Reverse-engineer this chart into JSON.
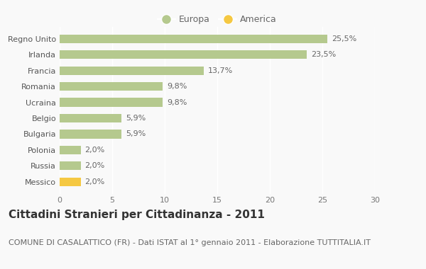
{
  "categories": [
    "Messico",
    "Russia",
    "Polonia",
    "Bulgaria",
    "Belgio",
    "Ucraina",
    "Romania",
    "Francia",
    "Irlanda",
    "Regno Unito"
  ],
  "values": [
    2.0,
    2.0,
    2.0,
    5.9,
    5.9,
    9.8,
    9.8,
    13.7,
    23.5,
    25.5
  ],
  "labels": [
    "2,0%",
    "2,0%",
    "2,0%",
    "5,9%",
    "5,9%",
    "9,8%",
    "9,8%",
    "13,7%",
    "23,5%",
    "25,5%"
  ],
  "colors": [
    "#f5c842",
    "#b5c98e",
    "#b5c98e",
    "#b5c98e",
    "#b5c98e",
    "#b5c98e",
    "#b5c98e",
    "#b5c98e",
    "#b5c98e",
    "#b5c98e"
  ],
  "europa_color": "#b5c98e",
  "america_color": "#f5c842",
  "title": "Cittadini Stranieri per Cittadinanza - 2011",
  "subtitle": "COMUNE DI CASALATTICO (FR) - Dati ISTAT al 1° gennaio 2011 - Elaborazione TUTTITALIA.IT",
  "xlim": [
    0,
    30
  ],
  "xticks": [
    0,
    5,
    10,
    15,
    20,
    25,
    30
  ],
  "bg_color": "#f9f9f9",
  "legend_europa": "Europa",
  "legend_america": "America",
  "title_fontsize": 11,
  "subtitle_fontsize": 8,
  "label_fontsize": 8,
  "tick_fontsize": 8,
  "bar_height": 0.55
}
